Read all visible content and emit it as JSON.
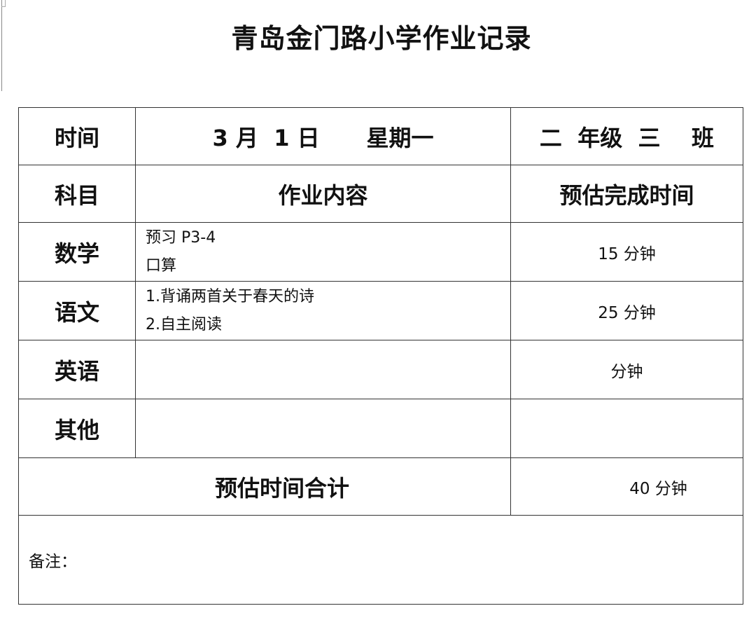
{
  "title": "青岛金门路小学作业记录",
  "header": {
    "time_label": "时间",
    "date": "3 月  1 日      星期一",
    "class": "二  年级  三    班"
  },
  "columns": {
    "subject": "科目",
    "content": "作业内容",
    "estimate": "预估完成时间"
  },
  "rows": [
    {
      "subject": "数学",
      "lines": [
        "预习 P3-4",
        "口算"
      ],
      "time": "15 分钟"
    },
    {
      "subject": "语文",
      "lines": [
        "1.背诵两首关于春天的诗",
        "2.自主阅读"
      ],
      "time": "25 分钟"
    },
    {
      "subject": "英语",
      "lines": [
        "",
        ""
      ],
      "time": "分钟"
    },
    {
      "subject": "其他",
      "lines": [
        "",
        ""
      ],
      "time": ""
    }
  ],
  "total": {
    "label": "预估时间合计",
    "value": "40 分钟"
  },
  "note_label": "备注："
}
